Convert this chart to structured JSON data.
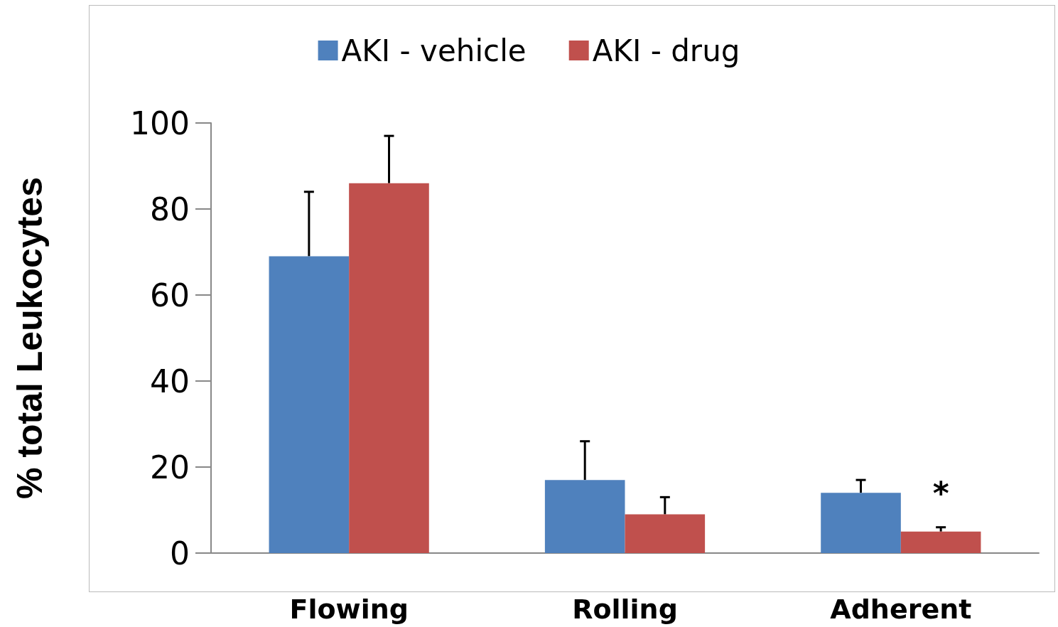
{
  "chart_data": {
    "type": "bar",
    "ylabel": "% total Leukocytes",
    "categories": [
      "Flowing",
      "Rolling",
      "Adherent"
    ],
    "series": [
      {
        "name": "AKI - vehicle",
        "color": "#4f81bd",
        "values": [
          69,
          17,
          14
        ],
        "errors": [
          [
            69,
            84
          ],
          [
            17,
            26
          ],
          [
            14,
            17
          ]
        ]
      },
      {
        "name": "AKI - drug",
        "color": "#c0504d",
        "values": [
          86,
          9,
          5
        ],
        "errors": [
          [
            86,
            97
          ],
          [
            9,
            13
          ],
          [
            5,
            6
          ]
        ]
      }
    ],
    "ylim": [
      0,
      100
    ],
    "yticks": [
      0,
      20,
      40,
      60,
      80,
      100
    ],
    "grid": false,
    "legend": "top",
    "annotations": [
      {
        "text": "*",
        "x": "Adherent",
        "y": 14
      }
    ]
  }
}
